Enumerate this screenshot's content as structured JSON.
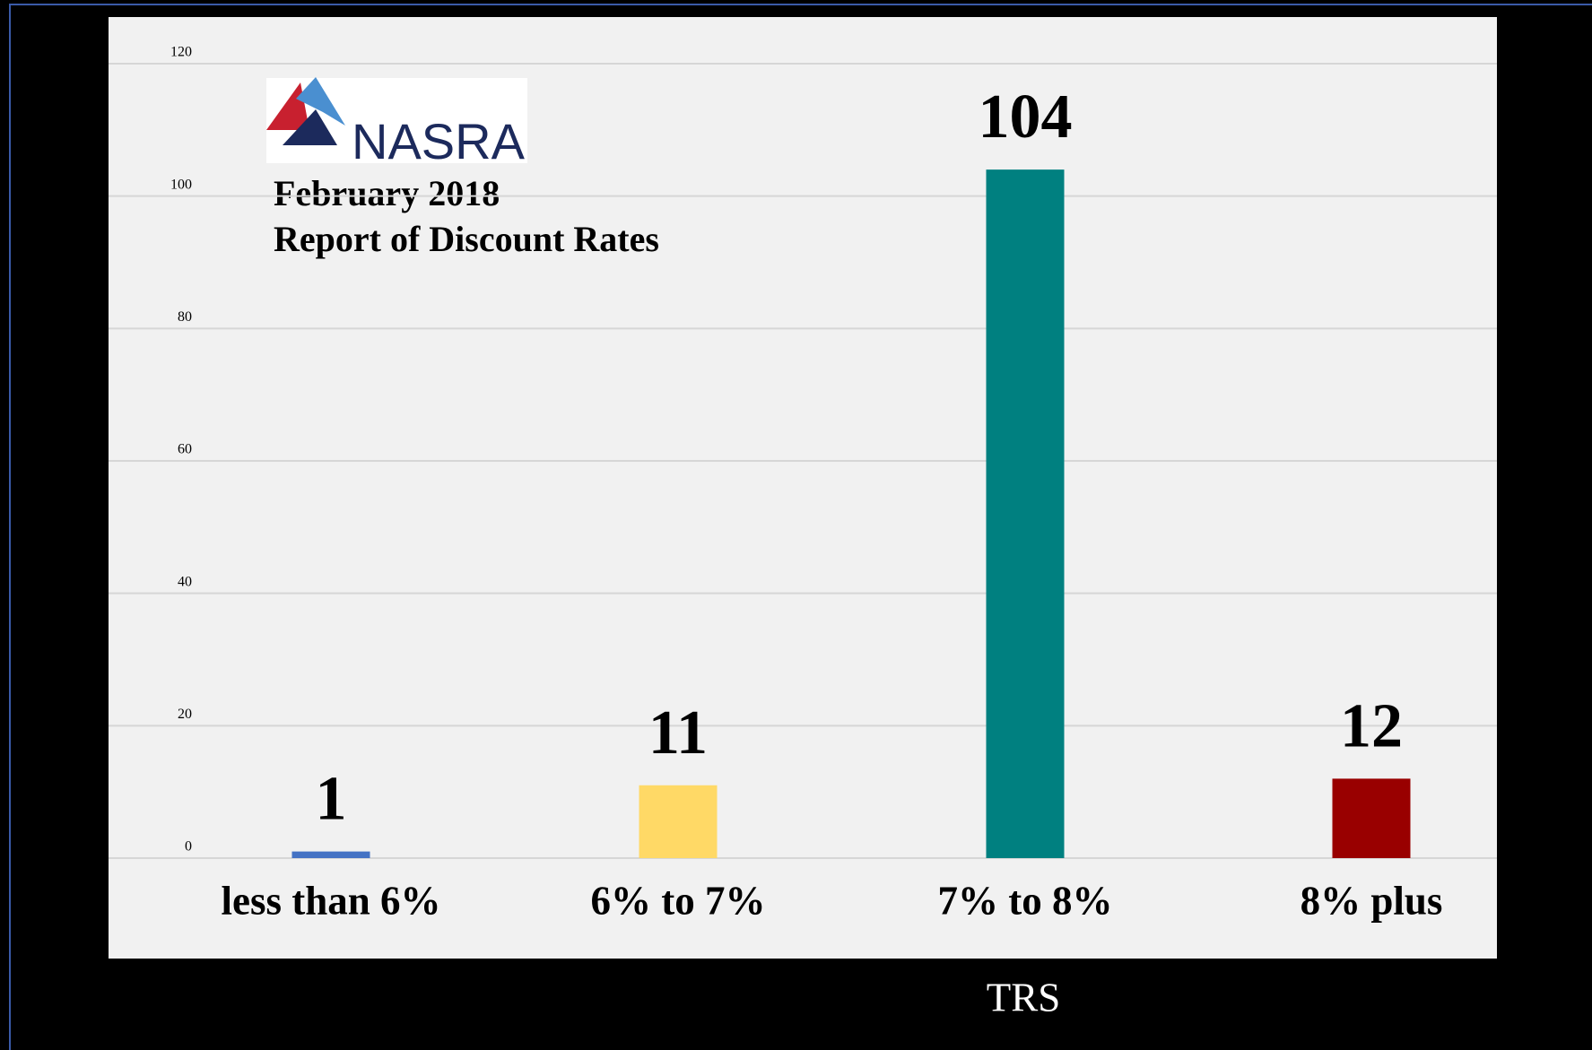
{
  "logo_text": "NASRA",
  "chart_data": {
    "type": "bar",
    "title": "February 2018",
    "subtitle": "Report of Discount Rates",
    "xlabel": "TRS",
    "categories": [
      "less than 6%",
      "6% to 7%",
      "7% to 8%",
      "8% plus"
    ],
    "values": [
      1,
      11,
      104,
      12
    ],
    "colors": [
      "#4472c4",
      "#ffd966",
      "#008080",
      "#990000"
    ],
    "ylim": [
      0,
      120
    ],
    "yticks": [
      0,
      20,
      40,
      60,
      80,
      100,
      120
    ],
    "grid": true
  }
}
